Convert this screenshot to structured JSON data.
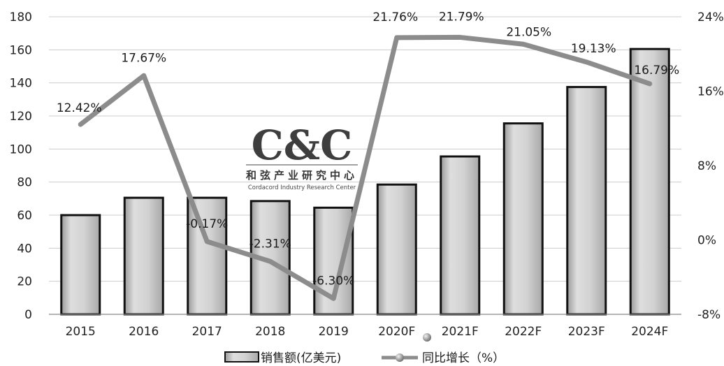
{
  "chart_data": {
    "type": "bar+line",
    "categories": [
      "2015",
      "2016",
      "2017",
      "2018",
      "2019",
      "2020F",
      "2021F",
      "2022F",
      "2023F",
      "2024F"
    ],
    "series": [
      {
        "name": "销售额(亿美元)",
        "type": "bar",
        "axis": "left",
        "values": [
          60,
          70.5,
          70.5,
          68.5,
          64.5,
          78.5,
          95.5,
          115.5,
          137.5,
          160.5
        ]
      },
      {
        "name": "同比增长（%）",
        "type": "line",
        "axis": "right",
        "values": [
          12.42,
          17.67,
          -0.17,
          -2.31,
          -6.3,
          21.76,
          21.79,
          21.05,
          19.13,
          16.79
        ],
        "labels": [
          "12.42%",
          "17.67%",
          "-0.17%",
          "-2.31%",
          "-6.30%",
          "21.76%",
          "21.79%",
          "21.05%",
          "19.13%",
          "16.79%"
        ]
      }
    ],
    "y_left": {
      "min": 0,
      "max": 180,
      "ticks": [
        0,
        20,
        40,
        60,
        80,
        100,
        120,
        140,
        160,
        180
      ]
    },
    "y_right": {
      "min": -8,
      "max": 24,
      "ticks": [
        -8,
        0,
        8,
        16,
        24
      ],
      "tick_labels": [
        "-8%",
        "0%",
        "8%",
        "16%",
        "24%"
      ]
    },
    "grid": true,
    "legend_position": "bottom-center",
    "colors": {
      "bar_fill": "#cfcfcf",
      "bar_stroke": "#111111",
      "line": "#8c8c8c",
      "grid": "#cccccc"
    }
  },
  "watermark": {
    "logo_text": "C&C",
    "chinese": "和弦产业研究中心",
    "english": "Cordacord Industry Research Center"
  }
}
